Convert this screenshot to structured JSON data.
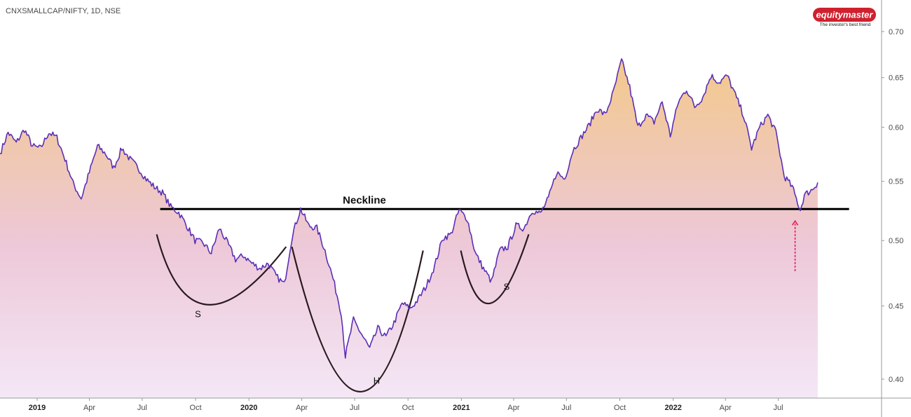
{
  "header": {
    "symbol": "CNXSMALLCAP/NIFTY, 1D, NSE"
  },
  "logo": {
    "brand": "equitymaster",
    "tagline": "The investor's best friend"
  },
  "colors": {
    "line": "#5b2fb5",
    "neckline": "#000000",
    "pattern": "#2a1a1f",
    "arrow": "#e5185f",
    "logo_bg": "#d0202e",
    "fill_top": "#f3c98b",
    "fill_bottom": "#f4e7f6"
  },
  "chart_data": {
    "type": "line",
    "title": "",
    "xlabel": "",
    "ylabel": "",
    "ylim": [
      0.39,
      0.72
    ],
    "yscale": "log",
    "grid": false,
    "y_ticks": [
      0.4,
      0.45,
      0.5,
      0.55,
      0.6,
      0.65,
      0.7
    ],
    "x_ticks": [
      {
        "label": "2019",
        "date": "2019-01-01",
        "bold": true
      },
      {
        "label": "Apr",
        "date": "2019-04-01",
        "bold": false
      },
      {
        "label": "Jul",
        "date": "2019-07-01",
        "bold": false
      },
      {
        "label": "Oct",
        "date": "2019-10-01",
        "bold": false
      },
      {
        "label": "2020",
        "date": "2020-01-01",
        "bold": true
      },
      {
        "label": "Apr",
        "date": "2020-04-01",
        "bold": false
      },
      {
        "label": "Jul",
        "date": "2020-07-01",
        "bold": false
      },
      {
        "label": "Oct",
        "date": "2020-10-01",
        "bold": false
      },
      {
        "label": "2021",
        "date": "2021-01-01",
        "bold": true
      },
      {
        "label": "Apr",
        "date": "2021-04-01",
        "bold": false
      },
      {
        "label": "Jul",
        "date": "2021-07-01",
        "bold": false
      },
      {
        "label": "Oct",
        "date": "2021-10-01",
        "bold": false
      },
      {
        "label": "2022",
        "date": "2022-01-01",
        "bold": true
      },
      {
        "label": "Apr",
        "date": "2022-04-01",
        "bold": false
      },
      {
        "label": "Jul",
        "date": "2022-07-01",
        "bold": false
      }
    ],
    "series": [
      {
        "points": [
          [
            "2018-10-29",
            0.575
          ],
          [
            "2018-11-12",
            0.595
          ],
          [
            "2018-11-26",
            0.585
          ],
          [
            "2018-12-10",
            0.598
          ],
          [
            "2018-12-24",
            0.582
          ],
          [
            "2019-01-07",
            0.58
          ],
          [
            "2019-01-21",
            0.595
          ],
          [
            "2019-02-04",
            0.59
          ],
          [
            "2019-02-18",
            0.57
          ],
          [
            "2019-03-04",
            0.548
          ],
          [
            "2019-03-18",
            0.535
          ],
          [
            "2019-04-01",
            0.558
          ],
          [
            "2019-04-15",
            0.582
          ],
          [
            "2019-04-29",
            0.575
          ],
          [
            "2019-05-13",
            0.562
          ],
          [
            "2019-05-27",
            0.58
          ],
          [
            "2019-06-10",
            0.57
          ],
          [
            "2019-06-24",
            0.562
          ],
          [
            "2019-07-08",
            0.552
          ],
          [
            "2019-07-22",
            0.545
          ],
          [
            "2019-08-05",
            0.54
          ],
          [
            "2019-08-19",
            0.528
          ],
          [
            "2019-09-02",
            0.523
          ],
          [
            "2019-09-16",
            0.512
          ],
          [
            "2019-09-30",
            0.5
          ],
          [
            "2019-10-14",
            0.498
          ],
          [
            "2019-10-28",
            0.49
          ],
          [
            "2019-11-11",
            0.51
          ],
          [
            "2019-11-25",
            0.498
          ],
          [
            "2019-12-09",
            0.485
          ],
          [
            "2019-12-23",
            0.488
          ],
          [
            "2020-01-06",
            0.482
          ],
          [
            "2020-01-20",
            0.478
          ],
          [
            "2020-02-03",
            0.482
          ],
          [
            "2020-02-17",
            0.472
          ],
          [
            "2020-03-02",
            0.466
          ],
          [
            "2020-03-16",
            0.505
          ],
          [
            "2020-03-30",
            0.526
          ],
          [
            "2020-04-13",
            0.512
          ],
          [
            "2020-04-27",
            0.51
          ],
          [
            "2020-05-11",
            0.492
          ],
          [
            "2020-05-25",
            0.47
          ],
          [
            "2020-06-08",
            0.445
          ],
          [
            "2020-06-15",
            0.415
          ],
          [
            "2020-06-29",
            0.44
          ],
          [
            "2020-07-13",
            0.43
          ],
          [
            "2020-07-27",
            0.42
          ],
          [
            "2020-08-10",
            0.434
          ],
          [
            "2020-08-24",
            0.428
          ],
          [
            "2020-09-07",
            0.438
          ],
          [
            "2020-09-21",
            0.452
          ],
          [
            "2020-10-05",
            0.448
          ],
          [
            "2020-10-19",
            0.455
          ],
          [
            "2020-11-02",
            0.465
          ],
          [
            "2020-11-16",
            0.48
          ],
          [
            "2020-11-30",
            0.502
          ],
          [
            "2020-12-14",
            0.505
          ],
          [
            "2020-12-28",
            0.525
          ],
          [
            "2021-01-11",
            0.518
          ],
          [
            "2021-01-25",
            0.49
          ],
          [
            "2021-02-08",
            0.478
          ],
          [
            "2021-02-22",
            0.468
          ],
          [
            "2021-03-08",
            0.492
          ],
          [
            "2021-03-22",
            0.495
          ],
          [
            "2021-04-05",
            0.512
          ],
          [
            "2021-04-19",
            0.51
          ],
          [
            "2021-05-03",
            0.525
          ],
          [
            "2021-05-17",
            0.522
          ],
          [
            "2021-05-31",
            0.535
          ],
          [
            "2021-06-14",
            0.558
          ],
          [
            "2021-06-28",
            0.552
          ],
          [
            "2021-07-12",
            0.578
          ],
          [
            "2021-07-26",
            0.59
          ],
          [
            "2021-08-09",
            0.602
          ],
          [
            "2021-08-23",
            0.618
          ],
          [
            "2021-09-06",
            0.612
          ],
          [
            "2021-09-20",
            0.635
          ],
          [
            "2021-10-04",
            0.668
          ],
          [
            "2021-10-18",
            0.64
          ],
          [
            "2021-11-01",
            0.6
          ],
          [
            "2021-11-15",
            0.612
          ],
          [
            "2021-11-29",
            0.605
          ],
          [
            "2021-12-13",
            0.625
          ],
          [
            "2021-12-27",
            0.592
          ],
          [
            "2022-01-10",
            0.625
          ],
          [
            "2022-01-24",
            0.638
          ],
          [
            "2022-02-07",
            0.62
          ],
          [
            "2022-02-21",
            0.63
          ],
          [
            "2022-03-07",
            0.652
          ],
          [
            "2022-03-21",
            0.645
          ],
          [
            "2022-04-04",
            0.652
          ],
          [
            "2022-04-18",
            0.632
          ],
          [
            "2022-05-02",
            0.612
          ],
          [
            "2022-05-16",
            0.58
          ],
          [
            "2022-05-30",
            0.6
          ],
          [
            "2022-06-13",
            0.612
          ],
          [
            "2022-06-27",
            0.595
          ],
          [
            "2022-07-11",
            0.555
          ],
          [
            "2022-07-25",
            0.545
          ],
          [
            "2022-08-08",
            0.525
          ],
          [
            "2022-08-15",
            0.538
          ],
          [
            "2022-08-29",
            0.543
          ],
          [
            "2022-09-07",
            0.549
          ]
        ]
      }
    ],
    "neckline": {
      "label": "Neckline",
      "value": 0.526,
      "start": "2019-08-01",
      "end": "2022-10-31"
    },
    "annotations": [
      {
        "label": "S",
        "date": "2019-10-05",
        "value": 0.442
      },
      {
        "label": "H",
        "date": "2020-08-08",
        "value": 0.397
      },
      {
        "label": "S",
        "date": "2021-03-20",
        "value": 0.462
      }
    ],
    "pattern_arcs": [
      {
        "name": "left-shoulder",
        "points": [
          [
            "2019-07-26",
            0.505
          ],
          [
            "2019-10-20",
            0.451
          ],
          [
            "2020-03-05",
            0.495
          ]
        ]
      },
      {
        "name": "head",
        "points": [
          [
            "2020-03-15",
            0.495
          ],
          [
            "2020-07-10",
            0.392
          ],
          [
            "2020-10-27",
            0.492
          ]
        ]
      },
      {
        "name": "right-shoulder",
        "points": [
          [
            "2020-12-31",
            0.492
          ],
          [
            "2021-02-20",
            0.452
          ],
          [
            "2021-04-27",
            0.505
          ]
        ]
      }
    ],
    "arrow": {
      "date": "2022-07-30",
      "from_value": 0.476,
      "to_value": 0.516
    }
  }
}
